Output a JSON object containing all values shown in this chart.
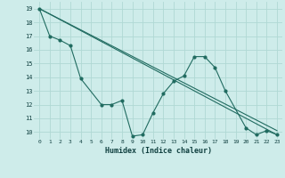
{
  "title": "",
  "xlabel": "Humidex (Indice chaleur)",
  "xlim": [
    -0.5,
    23.5
  ],
  "ylim": [
    9.5,
    19.5
  ],
  "yticks": [
    10,
    11,
    12,
    13,
    14,
    15,
    16,
    17,
    18,
    19
  ],
  "xticks": [
    0,
    1,
    2,
    3,
    4,
    5,
    6,
    7,
    8,
    9,
    10,
    11,
    12,
    13,
    14,
    15,
    16,
    17,
    18,
    19,
    20,
    21,
    22,
    23
  ],
  "background_color": "#ceecea",
  "grid_color": "#b0d8d4",
  "line_color": "#206b60",
  "line1_x": [
    0,
    1,
    2,
    3,
    4,
    6,
    7,
    8,
    9,
    10,
    11,
    12,
    13,
    14,
    15,
    16,
    17,
    18,
    20,
    21,
    22,
    23
  ],
  "line1_y": [
    19.0,
    17.0,
    16.7,
    16.3,
    13.9,
    12.0,
    12.0,
    12.3,
    9.7,
    9.8,
    11.4,
    12.8,
    13.7,
    14.1,
    15.5,
    15.5,
    14.7,
    13.0,
    10.3,
    9.8,
    10.1,
    9.8
  ],
  "line2_x": [
    0,
    23
  ],
  "line2_y": [
    19.0,
    10.1
  ],
  "line3_x": [
    0,
    23
  ],
  "line3_y": [
    19.0,
    9.8
  ]
}
